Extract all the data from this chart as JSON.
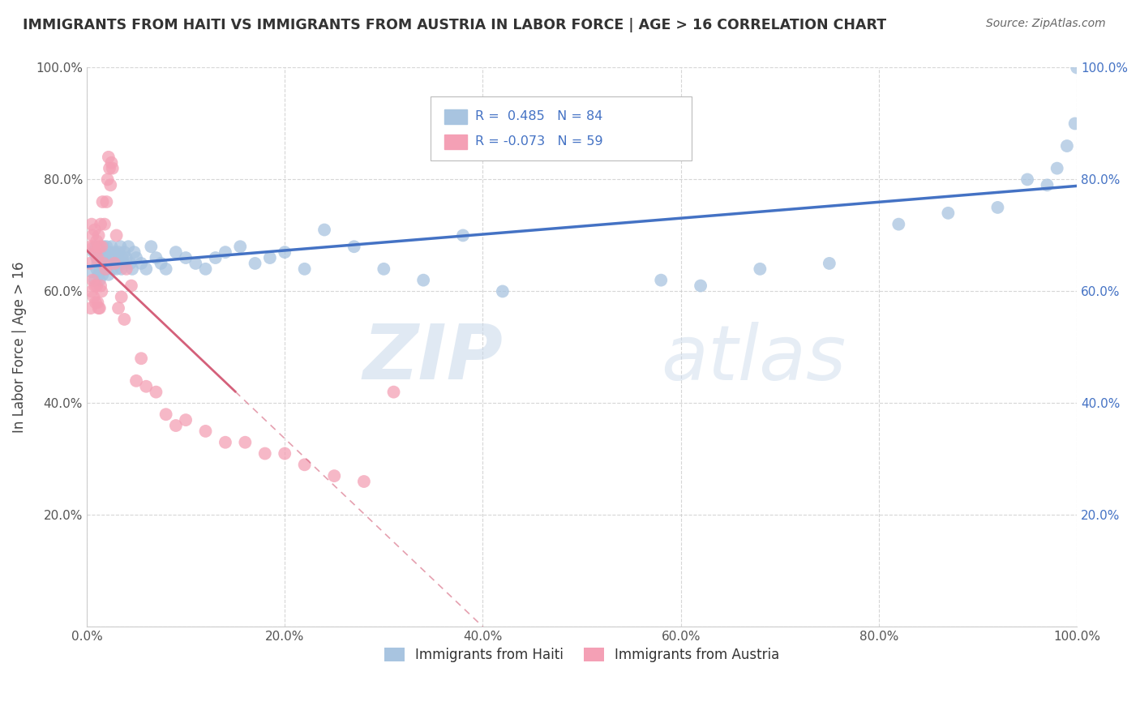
{
  "title": "IMMIGRANTS FROM HAITI VS IMMIGRANTS FROM AUSTRIA IN LABOR FORCE | AGE > 16 CORRELATION CHART",
  "source": "Source: ZipAtlas.com",
  "ylabel": "In Labor Force | Age > 16",
  "xlim": [
    0.0,
    1.0
  ],
  "ylim": [
    0.0,
    1.0
  ],
  "haiti_color": "#a8c4e0",
  "haiti_line_color": "#4472c4",
  "austria_color": "#f4a0b5",
  "austria_line_color": "#d4607a",
  "R_haiti": 0.485,
  "N_haiti": 84,
  "R_austria": -0.073,
  "N_austria": 59,
  "legend_label_haiti": "Immigrants from Haiti",
  "legend_label_austria": "Immigrants from Austria",
  "watermark_zip": "ZIP",
  "watermark_atlas": "atlas",
  "background_color": "#ffffff",
  "grid_color": "#cccccc",
  "haiti_points_x": [
    0.005,
    0.007,
    0.008,
    0.009,
    0.01,
    0.01,
    0.011,
    0.012,
    0.012,
    0.013,
    0.013,
    0.014,
    0.015,
    0.015,
    0.016,
    0.016,
    0.017,
    0.017,
    0.018,
    0.018,
    0.019,
    0.02,
    0.02,
    0.021,
    0.022,
    0.022,
    0.023,
    0.024,
    0.025,
    0.026,
    0.027,
    0.028,
    0.029,
    0.03,
    0.031,
    0.032,
    0.033,
    0.034,
    0.035,
    0.036,
    0.037,
    0.038,
    0.04,
    0.042,
    0.044,
    0.046,
    0.048,
    0.05,
    0.055,
    0.06,
    0.065,
    0.07,
    0.075,
    0.08,
    0.09,
    0.1,
    0.11,
    0.12,
    0.13,
    0.14,
    0.155,
    0.17,
    0.185,
    0.2,
    0.22,
    0.24,
    0.27,
    0.3,
    0.34,
    0.38,
    0.42,
    0.58,
    0.62,
    0.68,
    0.75,
    0.82,
    0.87,
    0.92,
    0.95,
    0.97,
    0.98,
    0.99,
    0.998,
    1.0
  ],
  "haiti_points_y": [
    0.635,
    0.67,
    0.62,
    0.68,
    0.66,
    0.64,
    0.65,
    0.67,
    0.63,
    0.66,
    0.62,
    0.64,
    0.67,
    0.65,
    0.66,
    0.63,
    0.68,
    0.64,
    0.65,
    0.67,
    0.66,
    0.64,
    0.68,
    0.65,
    0.66,
    0.63,
    0.67,
    0.65,
    0.68,
    0.64,
    0.66,
    0.67,
    0.65,
    0.64,
    0.66,
    0.67,
    0.65,
    0.68,
    0.64,
    0.66,
    0.65,
    0.67,
    0.66,
    0.68,
    0.65,
    0.64,
    0.67,
    0.66,
    0.65,
    0.64,
    0.68,
    0.66,
    0.65,
    0.64,
    0.67,
    0.66,
    0.65,
    0.64,
    0.66,
    0.67,
    0.68,
    0.65,
    0.66,
    0.67,
    0.64,
    0.71,
    0.68,
    0.64,
    0.62,
    0.7,
    0.6,
    0.62,
    0.61,
    0.64,
    0.65,
    0.72,
    0.74,
    0.75,
    0.8,
    0.79,
    0.82,
    0.86,
    0.9,
    1.0
  ],
  "austria_points_x": [
    0.003,
    0.004,
    0.004,
    0.005,
    0.005,
    0.006,
    0.006,
    0.007,
    0.007,
    0.008,
    0.008,
    0.009,
    0.009,
    0.01,
    0.01,
    0.011,
    0.011,
    0.012,
    0.012,
    0.013,
    0.013,
    0.014,
    0.014,
    0.015,
    0.015,
    0.016,
    0.017,
    0.018,
    0.019,
    0.02,
    0.021,
    0.022,
    0.023,
    0.024,
    0.025,
    0.026,
    0.028,
    0.03,
    0.032,
    0.035,
    0.038,
    0.04,
    0.045,
    0.05,
    0.055,
    0.06,
    0.07,
    0.08,
    0.09,
    0.1,
    0.12,
    0.14,
    0.16,
    0.18,
    0.2,
    0.22,
    0.25,
    0.28,
    0.31
  ],
  "austria_points_y": [
    0.65,
    0.68,
    0.57,
    0.72,
    0.6,
    0.7,
    0.62,
    0.68,
    0.59,
    0.71,
    0.61,
    0.67,
    0.58,
    0.69,
    0.61,
    0.66,
    0.58,
    0.7,
    0.57,
    0.68,
    0.57,
    0.72,
    0.61,
    0.68,
    0.6,
    0.76,
    0.65,
    0.72,
    0.64,
    0.76,
    0.8,
    0.84,
    0.82,
    0.79,
    0.83,
    0.82,
    0.65,
    0.7,
    0.57,
    0.59,
    0.55,
    0.64,
    0.61,
    0.44,
    0.48,
    0.43,
    0.42,
    0.38,
    0.36,
    0.37,
    0.35,
    0.33,
    0.33,
    0.31,
    0.31,
    0.29,
    0.27,
    0.26,
    0.42
  ]
}
